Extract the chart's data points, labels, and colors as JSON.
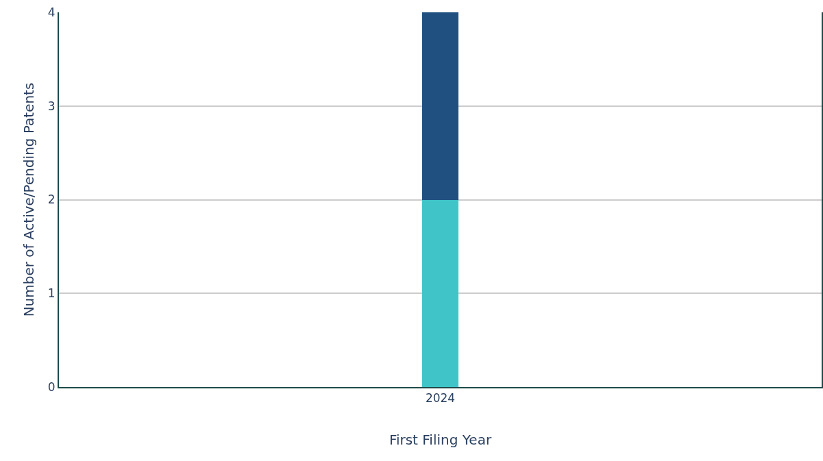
{
  "chart_data": {
    "type": "bar",
    "xlabel": "First Filing Year",
    "ylabel": "Number of Active/Pending Patents",
    "categories": [
      "2024"
    ],
    "series": [
      {
        "color": "#40c4c8",
        "values": [
          2
        ]
      },
      {
        "color": "#1f5080",
        "values": [
          2
        ]
      }
    ],
    "stacked": true,
    "ylim": [
      0,
      4
    ],
    "yticks": [
      0,
      1,
      2,
      3,
      4
    ],
    "grid": "y",
    "legend": false
  }
}
